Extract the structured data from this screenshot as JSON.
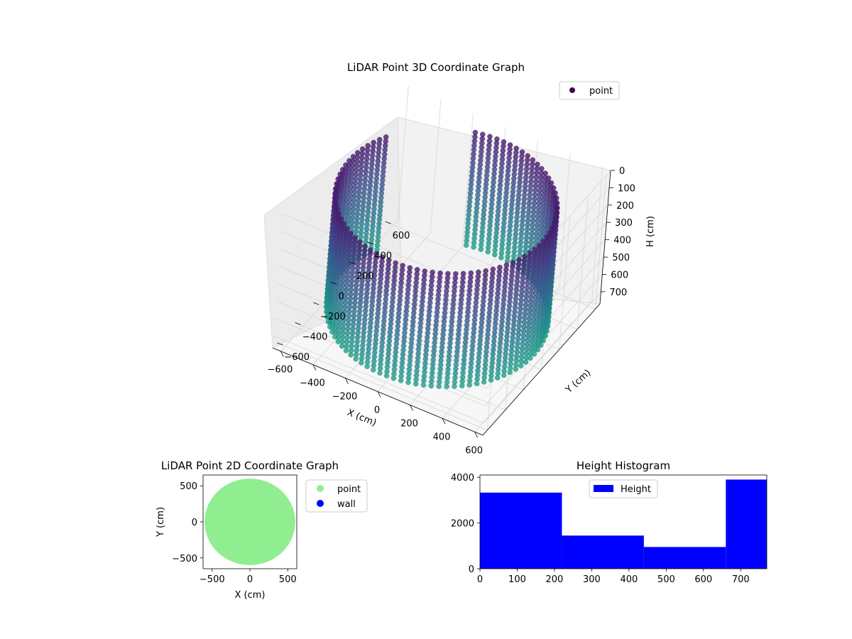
{
  "chart_data": [
    {
      "type": "scatter",
      "subtype": "3d",
      "title": "LiDAR Point 3D Coordinate Graph",
      "xlabel": "X (cm)",
      "ylabel": "Y (cm)",
      "zlabel": "H (cm)",
      "xticks": [
        "−600",
        "−400",
        "−200",
        "0",
        "200",
        "400",
        "600"
      ],
      "yticks": [
        "−600",
        "−400",
        "−200",
        "0",
        "200",
        "400",
        "600"
      ],
      "zticks": [
        "0",
        "100",
        "200",
        "300",
        "400",
        "500",
        "600",
        "700"
      ],
      "xlim": [
        -650,
        650
      ],
      "ylim": [
        -650,
        650
      ],
      "zlim": [
        0,
        770
      ],
      "z_inverted": true,
      "legend": {
        "position": "top-right",
        "entries": [
          "point"
        ]
      },
      "colormap": "viridis",
      "marker_color_legend": "#440154",
      "series": [
        {
          "name": "point",
          "shape": "circular wall of points",
          "center": [
            0,
            0
          ],
          "radius": 600,
          "height_range": [
            50,
            700
          ],
          "open_arc_deg": [
            105,
            150
          ]
        }
      ]
    },
    {
      "type": "scatter",
      "title": "LiDAR Point 2D Coordinate Graph",
      "xlabel": "X (cm)",
      "ylabel": "Y (cm)",
      "xticks": [
        "−500",
        "0",
        "500"
      ],
      "yticks": [
        "500",
        "0",
        "−500"
      ],
      "xlim": [
        -620,
        620
      ],
      "ylim": [
        -650,
        650
      ],
      "legend": {
        "position": "outside-right",
        "entries": [
          "point",
          "wall"
        ]
      },
      "series": [
        {
          "name": "point",
          "color": "#90ee90",
          "shape": "filled disc",
          "center": [
            0,
            0
          ],
          "radius": 600
        },
        {
          "name": "wall",
          "color": "#0000ff",
          "points": []
        }
      ]
    },
    {
      "type": "bar",
      "subtype": "histogram",
      "title": "Height Histogram",
      "xticks": [
        "0",
        "100",
        "200",
        "300",
        "400",
        "500",
        "600",
        "700"
      ],
      "yticks": [
        "0",
        "2000",
        "4000"
      ],
      "xlim": [
        0,
        770
      ],
      "ylim": [
        0,
        4100
      ],
      "legend": {
        "position": "top-center",
        "entries": [
          "Height"
        ]
      },
      "series": [
        {
          "name": "Height",
          "color": "#0000ff",
          "bins": [
            0,
            220,
            440,
            660,
            770
          ],
          "values": [
            3330,
            1450,
            950,
            3900
          ]
        }
      ]
    }
  ]
}
